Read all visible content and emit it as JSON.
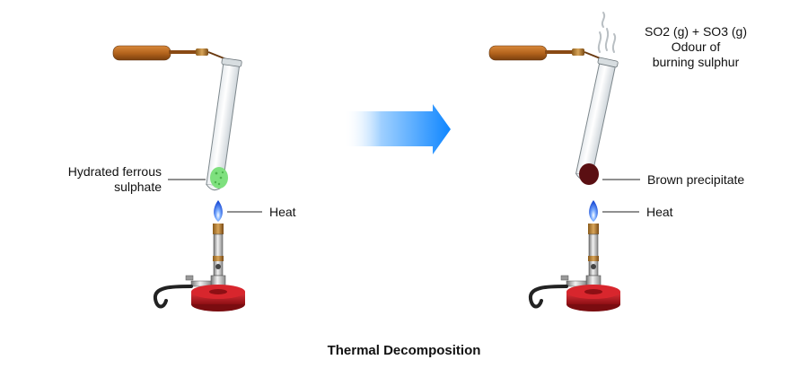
{
  "title": "Thermal Decomposition",
  "left": {
    "sample_label_line1": "Hydrated ferrous",
    "sample_label_line2": "sulphate",
    "heat_label": "Heat",
    "sample_color": "#7ee07e"
  },
  "right": {
    "gas_line1": "SO2 (g) + SO3 (g)",
    "gas_line2": "Odour of",
    "gas_line3": "burning sulphur",
    "residue_label": "Brown precipitate",
    "heat_label": "Heat",
    "residue_color": "#5a0f12"
  },
  "colors": {
    "arrow": "#1a8cff",
    "burner_base": "#c0181f",
    "handle": "#b5651d",
    "flame": "#2a6bff"
  }
}
